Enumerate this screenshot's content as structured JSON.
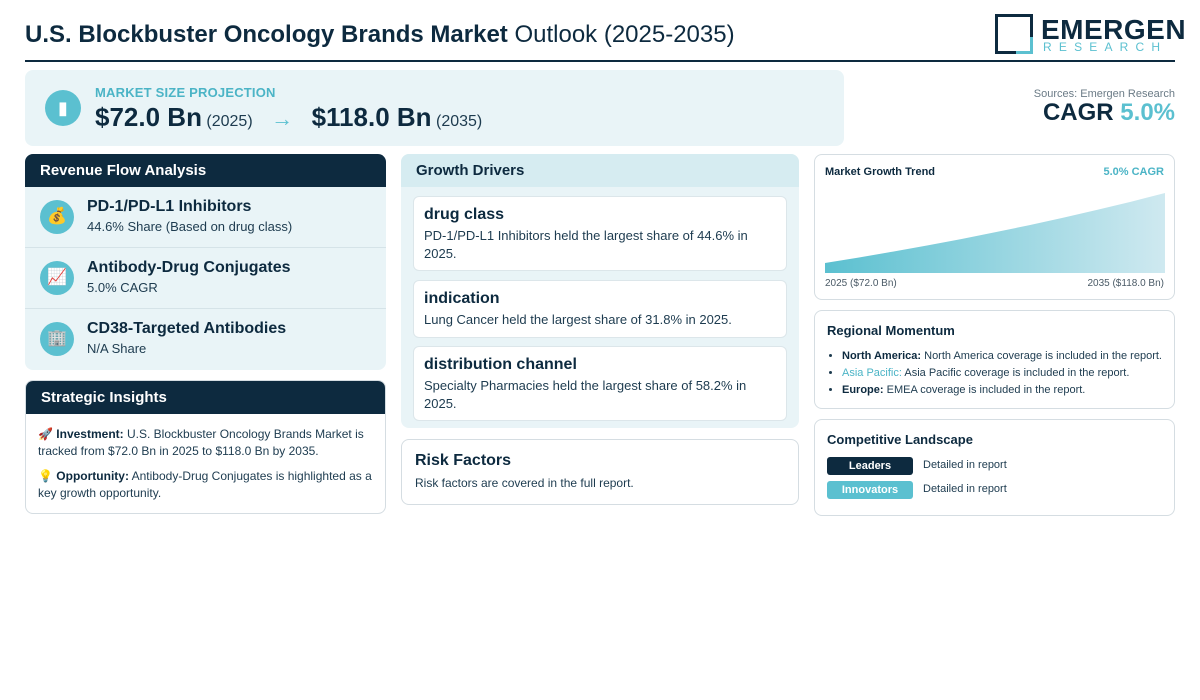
{
  "header": {
    "title_bold": "U.S. Blockbuster Oncology Brands Market",
    "title_rest": "Outlook (2025-2035)",
    "logo_main": "EMERGEN",
    "logo_sub": "RESEARCH"
  },
  "projection": {
    "label": "MARKET SIZE PROJECTION",
    "start_value": "$72.0 Bn",
    "start_year": "(2025)",
    "arrow": "→",
    "end_value": "$118.0 Bn",
    "end_year": "(2035)",
    "icon": "bar-chart-icon"
  },
  "sources": "Sources: Emergen Research",
  "cagr": {
    "label": "CAGR",
    "value": "5.0%"
  },
  "revenue_flow": {
    "heading": "Revenue Flow Analysis",
    "items": [
      {
        "icon": "money-bag-icon",
        "glyph": "💰",
        "name": "PD-1/PD-L1 Inhibitors",
        "sub": "44.6% Share (Based on drug class)"
      },
      {
        "icon": "trend-chart-icon",
        "glyph": "📈",
        "name": "Antibody-Drug Conjugates",
        "sub": "5.0% CAGR"
      },
      {
        "icon": "building-icon",
        "glyph": "🏢",
        "name": "CD38-Targeted Antibodies",
        "sub": "N/A Share"
      }
    ]
  },
  "strategic": {
    "heading": "Strategic Insights",
    "investment_label": "Investment:",
    "investment_text": "U.S. Blockbuster Oncology Brands Market is tracked from $72.0 Bn in 2025 to $118.0 Bn by 2035.",
    "opportunity_label": "Opportunity:",
    "opportunity_text": "Antibody-Drug Conjugates is highlighted as a key growth opportunity."
  },
  "drivers": {
    "heading": "Growth Drivers",
    "items": [
      {
        "title": "drug class",
        "text": "PD-1/PD-L1 Inhibitors held the largest share of 44.6% in 2025."
      },
      {
        "title": "indication",
        "text": "Lung Cancer held the largest share of 31.8% in 2025."
      },
      {
        "title": "distribution channel",
        "text": "Specialty Pharmacies held the largest share of 58.2% in 2025."
      }
    ]
  },
  "risk": {
    "heading": "Risk Factors",
    "text": "Risk factors are covered in the full report."
  },
  "trend": {
    "title": "Market Growth Trend",
    "cagr": "5.0% CAGR",
    "left_label": "2025 ($72.0 Bn)",
    "right_label": "2035 ($118.0 Bn)"
  },
  "chart_data": {
    "type": "area",
    "x": [
      2025,
      2035
    ],
    "values": [
      72.0,
      118.0
    ],
    "title": "Market Growth Trend",
    "annotations": [
      "5.0% CAGR"
    ],
    "grid": false,
    "colors": {
      "fill_top": "#dff0f5",
      "fill_bottom": "#5bc0d0"
    }
  },
  "regional": {
    "heading": "Regional Momentum",
    "items": [
      {
        "label": "North America:",
        "text": "North America coverage is included in the report."
      },
      {
        "label": "Asia Pacific:",
        "text": "Asia Pacific coverage is included in the report."
      },
      {
        "label": "Europe:",
        "text": "EMEA coverage is included in the report."
      }
    ]
  },
  "competitive": {
    "heading": "Competitive Landscape",
    "rows": [
      {
        "pill": "Leaders",
        "desc": "Detailed in report"
      },
      {
        "pill": "Innovators",
        "desc": "Detailed in report"
      }
    ]
  },
  "colors": {
    "navy": "#0d2a3f",
    "teal": "#5bc0d0",
    "panel": "#e9f4f7"
  }
}
